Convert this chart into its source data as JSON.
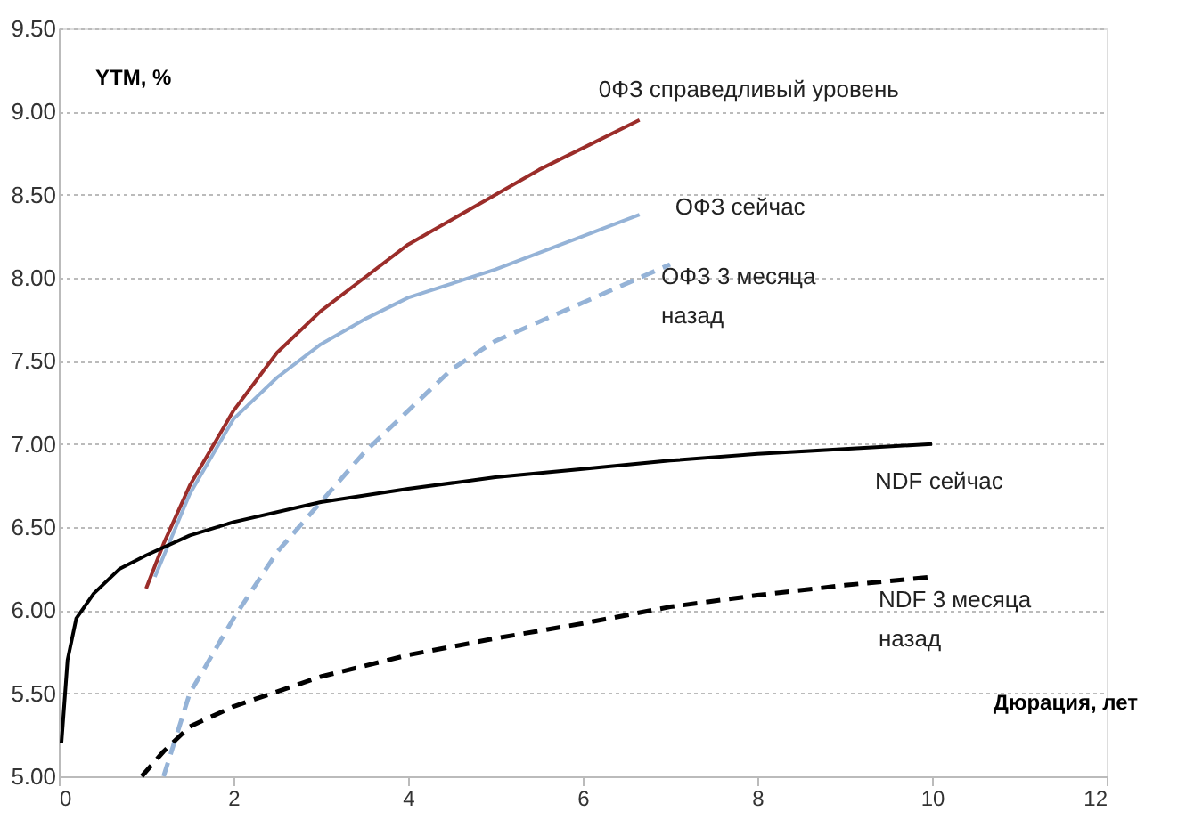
{
  "chart_data": {
    "type": "line",
    "xlabel": "Дюрация, лет",
    "ylabel": "YTM, %",
    "xlim": [
      0,
      12
    ],
    "xticks": [
      0,
      2,
      4,
      6,
      8,
      10,
      12
    ],
    "ylim": [
      5.0,
      9.5
    ],
    "yticks": [
      {
        "value": 5.0,
        "label": "5.00"
      },
      {
        "value": 5.5,
        "label": "5.50"
      },
      {
        "value": 6.0,
        "label": "6.00"
      },
      {
        "value": 6.5,
        "label": "6.50"
      },
      {
        "value": 7.0,
        "label": "7.00"
      },
      {
        "value": 7.5,
        "label": "7.50"
      },
      {
        "value": 8.0,
        "label": "8.00"
      },
      {
        "value": 8.5,
        "label": "8.50"
      },
      {
        "value": 9.0,
        "label": "9.00"
      },
      {
        "value": 9.5,
        "label": "9.50"
      }
    ],
    "grid": "y",
    "legend": false,
    "series": [
      {
        "name": "0ФЗ справедливый уровень",
        "color": "#9b2d2a",
        "line_style": "solid",
        "x": [
          1.0,
          1.2,
          1.5,
          2,
          2.5,
          3,
          3.5,
          4,
          4.5,
          5,
          5.5,
          6,
          6.65
        ],
        "values": [
          6.13,
          6.4,
          6.75,
          7.2,
          7.55,
          7.8,
          8.0,
          8.2,
          8.35,
          8.5,
          8.65,
          8.78,
          8.95
        ]
      },
      {
        "name": "ОФЗ сейчас",
        "color": "#95b3d7",
        "line_style": "solid",
        "x": [
          1.1,
          1.5,
          2,
          2.5,
          3,
          3.5,
          4,
          5,
          6,
          6.65
        ],
        "values": [
          6.2,
          6.7,
          7.15,
          7.4,
          7.6,
          7.75,
          7.88,
          8.05,
          8.25,
          8.38
        ]
      },
      {
        "name": "ОФЗ 3 месяца назад",
        "color": "#95b3d7",
        "line_style": "dashed",
        "x": [
          1.2,
          1.5,
          2,
          2.5,
          3,
          3.5,
          4,
          4.5,
          5,
          6,
          7
        ],
        "values": [
          5.0,
          5.5,
          5.95,
          6.35,
          6.65,
          6.95,
          7.2,
          7.45,
          7.62,
          7.85,
          8.08
        ]
      },
      {
        "name": "NDF сейчас",
        "color": "#000000",
        "line_style": "solid",
        "x": [
          0.03,
          0.1,
          0.2,
          0.4,
          0.7,
          1,
          1.5,
          2,
          3,
          4,
          5,
          6,
          7,
          8,
          9,
          10
        ],
        "values": [
          5.2,
          5.7,
          5.95,
          6.1,
          6.25,
          6.33,
          6.45,
          6.53,
          6.65,
          6.73,
          6.8,
          6.85,
          6.9,
          6.94,
          6.97,
          7.0
        ]
      },
      {
        "name": "NDF 3 месяца назад",
        "color": "#000000",
        "line_style": "dashed",
        "x": [
          0.95,
          1.2,
          1.5,
          2,
          3,
          4,
          5,
          6,
          7,
          8,
          9,
          10
        ],
        "values": [
          5.0,
          5.15,
          5.3,
          5.42,
          5.6,
          5.73,
          5.83,
          5.92,
          6.02,
          6.09,
          6.15,
          6.2
        ]
      }
    ]
  }
}
